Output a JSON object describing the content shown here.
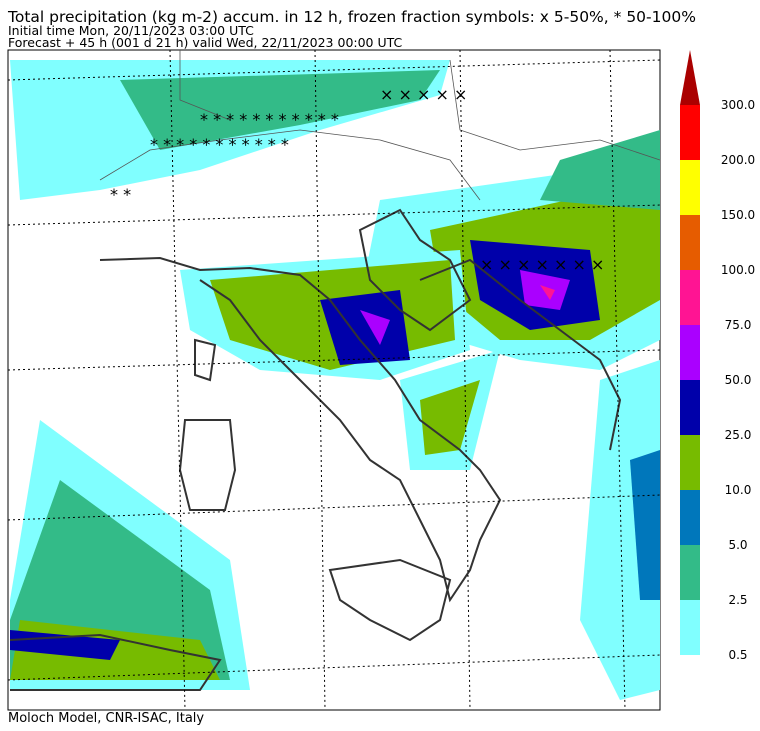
{
  "header": {
    "title": "Total precipitation (kg m-2) accum. in 12 h, frozen fraction symbols: x 5-50%, * 50-100%",
    "initial_time": "Initial time  Mon, 20/11/2023  03:00 UTC",
    "forecast": "Forecast  +  45 h  (001 d 21 h)  valid Wed, 22/11/2023 00:00 UTC"
  },
  "colorbar": {
    "levels": [
      {
        "label": "0.5",
        "color": "#80ffff"
      },
      {
        "label": "2.5",
        "color": "#33bb88"
      },
      {
        "label": "5.0",
        "color": "#0077bb"
      },
      {
        "label": "10.0",
        "color": "#77bb00"
      },
      {
        "label": "25.0",
        "color": "#0000aa"
      },
      {
        "label": "50.0",
        "color": "#aa00ff"
      },
      {
        "label": "75.0",
        "color": "#ff1493"
      },
      {
        "label": "100.0",
        "color": "#e65c00"
      },
      {
        "label": "150.0",
        "color": "#ffff00"
      },
      {
        "label": "200.0",
        "color": "#ff0000"
      },
      {
        "label": "300.0",
        "color": "#aa0000"
      }
    ]
  },
  "footer": "Moloch Model, CNR-ISAC, Italy"
}
